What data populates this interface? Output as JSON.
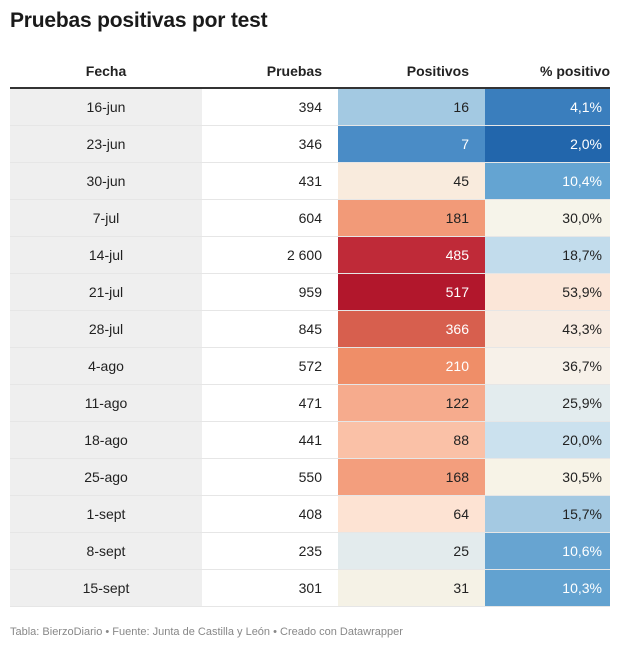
{
  "title": "Pruebas positivas por test",
  "footer": "Tabla: BierzoDiario • Fuente: Junta de Castilla y León • Creado con Datawrapper",
  "chart_data": {
    "type": "table",
    "columns": [
      "Fecha",
      "Pruebas",
      "Positivos",
      "% positivo"
    ],
    "rows": [
      {
        "fecha": "16-jun",
        "pruebas": "394",
        "positivos": "16",
        "pct": "4,1%",
        "pos_bg": "#a3c9e2",
        "pos_fg": "#222222",
        "pct_bg": "#3a7ebd",
        "pct_fg": "#ffffff"
      },
      {
        "fecha": "23-jun",
        "pruebas": "346",
        "positivos": "7",
        "pct": "2,0%",
        "pos_bg": "#4a8cc6",
        "pos_fg": "#ffffff",
        "pct_bg": "#2266ac",
        "pct_fg": "#ffffff"
      },
      {
        "fecha": "30-jun",
        "pruebas": "431",
        "positivos": "45",
        "pct": "10,4%",
        "pos_bg": "#f9ebdd",
        "pos_fg": "#222222",
        "pct_bg": "#64a4d2",
        "pct_fg": "#ffffff"
      },
      {
        "fecha": "7-jul",
        "pruebas": "604",
        "positivos": "181",
        "pct": "30,0%",
        "pos_bg": "#f29a78",
        "pos_fg": "#222222",
        "pct_bg": "#f6f4ea",
        "pct_fg": "#222222"
      },
      {
        "fecha": "14-jul",
        "pruebas": "2 600",
        "positivos": "485",
        "pct": "18,7%",
        "pos_bg": "#bf2a38",
        "pos_fg": "#ffffff",
        "pct_bg": "#c2dcec",
        "pct_fg": "#222222"
      },
      {
        "fecha": "21-jul",
        "pruebas": "959",
        "positivos": "517",
        "pct": "53,9%",
        "pos_bg": "#b2172c",
        "pos_fg": "#ffffff",
        "pct_bg": "#fbe6d8",
        "pct_fg": "#222222"
      },
      {
        "fecha": "28-jul",
        "pruebas": "845",
        "positivos": "366",
        "pct": "43,3%",
        "pos_bg": "#d75f4e",
        "pos_fg": "#ffffff",
        "pct_bg": "#f8ece2",
        "pct_fg": "#222222"
      },
      {
        "fecha": "4-ago",
        "pruebas": "572",
        "positivos": "210",
        "pct": "36,7%",
        "pos_bg": "#ef8e68",
        "pos_fg": "#ffffff",
        "pct_bg": "#f7f1e9",
        "pct_fg": "#222222"
      },
      {
        "fecha": "11-ago",
        "pruebas": "471",
        "positivos": "122",
        "pct": "25,9%",
        "pos_bg": "#f6ab8d",
        "pos_fg": "#222222",
        "pct_bg": "#e3ecee",
        "pct_fg": "#222222"
      },
      {
        "fecha": "18-ago",
        "pruebas": "441",
        "positivos": "88",
        "pct": "20,0%",
        "pos_bg": "#fac1a7",
        "pos_fg": "#222222",
        "pct_bg": "#cbe1ee",
        "pct_fg": "#222222"
      },
      {
        "fecha": "25-ago",
        "pruebas": "550",
        "positivos": "168",
        "pct": "30,5%",
        "pos_bg": "#f39e7d",
        "pos_fg": "#222222",
        "pct_bg": "#f7f3e7",
        "pct_fg": "#222222"
      },
      {
        "fecha": "1-sept",
        "pruebas": "408",
        "positivos": "64",
        "pct": "15,7%",
        "pos_bg": "#fde3d3",
        "pos_fg": "#222222",
        "pct_bg": "#a4c9e2",
        "pct_fg": "#222222"
      },
      {
        "fecha": "8-sept",
        "pruebas": "235",
        "positivos": "25",
        "pct": "10,6%",
        "pos_bg": "#e3ebed",
        "pos_fg": "#222222",
        "pct_bg": "#67a4d1",
        "pct_fg": "#ffffff"
      },
      {
        "fecha": "15-sept",
        "pruebas": "301",
        "positivos": "31",
        "pct": "10,3%",
        "pos_bg": "#f5f2e6",
        "pos_fg": "#222222",
        "pct_bg": "#62a2d0",
        "pct_fg": "#ffffff"
      }
    ]
  }
}
